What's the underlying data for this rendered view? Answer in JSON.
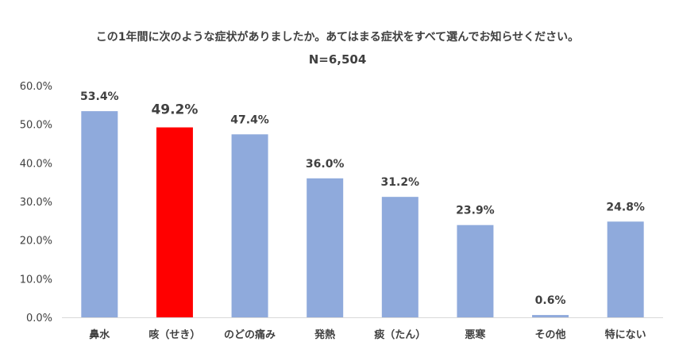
{
  "chart_data": {
    "type": "bar",
    "title": "この1年間に次のような症状がありましたか。あてはまる症状をすべて選んでお知らせください。",
    "subtitle": "N=6,504",
    "xlabel": "",
    "ylabel": "",
    "categories": [
      "鼻水",
      "咳（せき）",
      "のどの痛み",
      "発熱",
      "痰（たん）",
      "悪寒",
      "その他",
      "特にない"
    ],
    "values": [
      53.4,
      49.2,
      47.4,
      36.0,
      31.2,
      23.9,
      0.6,
      24.8
    ],
    "value_labels": [
      "53.4%",
      "49.2%",
      "47.4%",
      "36.0%",
      "31.2%",
      "23.9%",
      "0.6%",
      "24.8%"
    ],
    "ylim": [
      0,
      60
    ],
    "yticks": [
      0,
      10,
      20,
      30,
      40,
      50,
      60
    ],
    "ytick_labels": [
      "0.0%",
      "10.0%",
      "20.0%",
      "30.0%",
      "40.0%",
      "50.0%",
      "60.0%"
    ],
    "highlight_index": 1,
    "grid": false,
    "colors": {
      "bar": "#8faadc",
      "highlight": "#ff0000",
      "axis": "#d9d9d9"
    }
  }
}
